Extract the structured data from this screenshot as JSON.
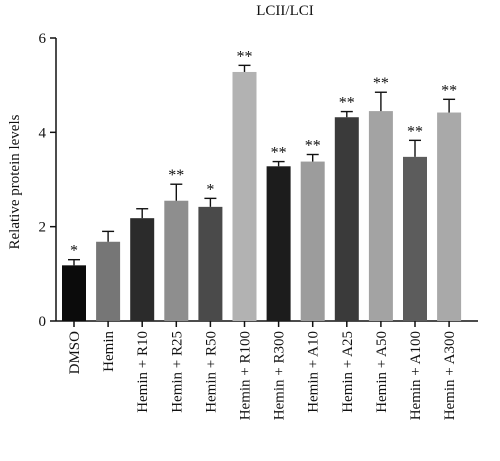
{
  "chart_data": {
    "type": "bar",
    "title": "LCII/LCI",
    "ylabel": "Relative protein levels",
    "xlabel": "",
    "ylim": [
      0,
      6
    ],
    "yticks": [
      0,
      2,
      4,
      6
    ],
    "legend": "none",
    "grid": false,
    "categories": [
      "DMSO",
      "Hemin",
      "Hemin + R10",
      "Hemin + R25",
      "Hemin + R50",
      "Hemin + R100",
      "Hemin + R300",
      "Hemin + A10",
      "Hemin + A25",
      "Hemin + A50",
      "Hemin + A100",
      "Hemin + A300"
    ],
    "values": [
      1.18,
      1.68,
      2.18,
      2.55,
      2.42,
      5.28,
      3.28,
      3.38,
      4.32,
      4.45,
      3.48,
      4.42
    ],
    "errors": [
      0.12,
      0.22,
      0.2,
      0.35,
      0.18,
      0.14,
      0.1,
      0.15,
      0.12,
      0.4,
      0.35,
      0.28
    ],
    "significance": [
      "*",
      "",
      "",
      "**",
      "*",
      "**",
      "**",
      "**",
      "**",
      "**",
      "**",
      "**"
    ],
    "colors": [
      "#0b0b0b",
      "#767676",
      "#2b2b2b",
      "#8e8e8e",
      "#4a4a4a",
      "#b2b2b2",
      "#1c1c1c",
      "#9c9c9c",
      "#3a3a3a",
      "#a3a3a3",
      "#5c5c5c",
      "#a9a9a9"
    ]
  }
}
